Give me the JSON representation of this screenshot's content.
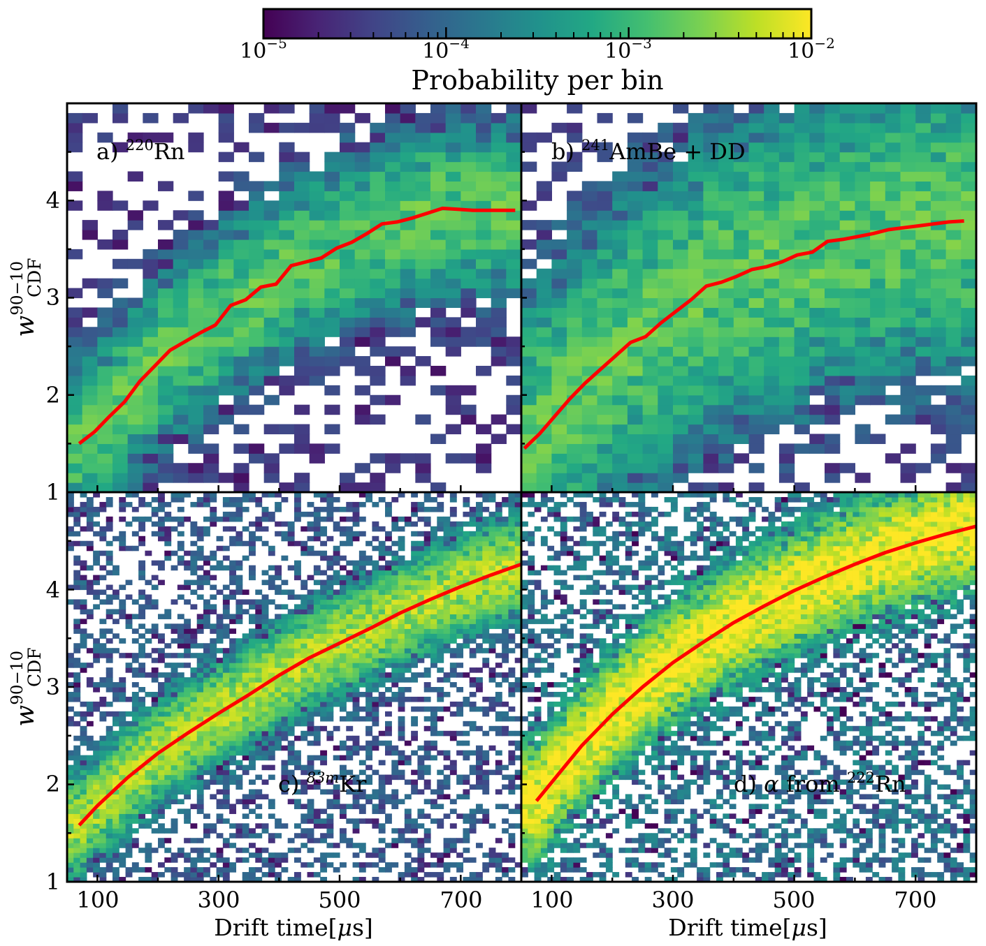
{
  "chart_data": {
    "type": "heatmap",
    "layout": "2x2 panels, shared axes",
    "colorbar": {
      "label": "Probability per bin",
      "scale": "log",
      "range": [
        1e-05,
        0.01
      ],
      "colormap": "viridis",
      "placement": "top",
      "ticks": [
        {
          "base": "10",
          "exp": "−5"
        },
        {
          "base": "10",
          "exp": "−4"
        },
        {
          "base": "10",
          "exp": "−3"
        },
        {
          "base": "10",
          "exp": "−2"
        }
      ]
    },
    "x_axis": {
      "label": "Drift time[",
      "label_symbol": "μ",
      "label_end": "s]",
      "range": [
        50,
        800
      ],
      "ticks": [
        100,
        300,
        500,
        700
      ],
      "tick_labels": [
        "100",
        "300",
        "500",
        "700"
      ]
    },
    "y_axis": {
      "label_base": "w",
      "label_sup": "90−10",
      "label_sub": "CDF",
      "range": [
        1,
        5
      ],
      "ticks": [
        1,
        2,
        3,
        4
      ],
      "tick_labels": [
        "1",
        "2",
        "3",
        "4"
      ]
    },
    "line_color": "#ff0000",
    "panels": [
      {
        "id": "a",
        "label_prefix": "a) ",
        "label_sup": "220",
        "label_suffix": "Rn",
        "bins": [
          30,
          40
        ],
        "spread": 0.42,
        "peak_log": -2.75,
        "threshold": 0.012,
        "median_x": [
          70,
          95,
          120,
          145,
          170,
          195,
          220,
          245,
          270,
          295,
          320,
          345,
          370,
          395,
          420,
          445,
          470,
          495,
          520,
          545,
          570,
          595,
          620,
          645,
          670,
          695,
          720,
          745,
          770,
          790
        ],
        "median_y": [
          1.5,
          1.62,
          1.78,
          1.93,
          2.14,
          2.3,
          2.46,
          2.55,
          2.64,
          2.72,
          2.92,
          2.98,
          3.11,
          3.14,
          3.33,
          3.37,
          3.41,
          3.51,
          3.57,
          3.66,
          3.76,
          3.78,
          3.82,
          3.87,
          3.92,
          3.91,
          3.9,
          3.9,
          3.9,
          3.9
        ]
      },
      {
        "id": "b",
        "label_prefix": "b) ",
        "label_sup": "241",
        "label_suffix": "AmBe + DD",
        "bins": [
          30,
          40
        ],
        "spread": 0.75,
        "peak_log": -2.75,
        "threshold": 0.018,
        "median_x": [
          55,
          80,
          105,
          130,
          155,
          180,
          205,
          230,
          255,
          280,
          305,
          330,
          355,
          380,
          405,
          430,
          455,
          480,
          505,
          530,
          555,
          580,
          605,
          630,
          655,
          680,
          705,
          730,
          755,
          780
        ],
        "median_y": [
          1.45,
          1.6,
          1.78,
          1.96,
          2.12,
          2.26,
          2.4,
          2.54,
          2.6,
          2.74,
          2.86,
          2.98,
          3.12,
          3.16,
          3.22,
          3.29,
          3.32,
          3.37,
          3.44,
          3.47,
          3.58,
          3.6,
          3.63,
          3.66,
          3.7,
          3.72,
          3.74,
          3.76,
          3.78,
          3.79
        ]
      },
      {
        "id": "c",
        "label_prefix": "c) ",
        "label_sup": "83m",
        "label_suffix": "Kr",
        "bins": [
          70,
          80
        ],
        "spread": 0.24,
        "peak_log": -2.3,
        "threshold": 0.004,
        "median_x": [
          70,
          100,
          150,
          200,
          250,
          300,
          350,
          400,
          450,
          500,
          550,
          600,
          650,
          700,
          750,
          800
        ],
        "median_y": [
          1.58,
          1.78,
          2.07,
          2.32,
          2.53,
          2.73,
          2.92,
          3.12,
          3.3,
          3.45,
          3.6,
          3.76,
          3.9,
          4.03,
          4.15,
          4.26
        ]
      },
      {
        "id": "d",
        "label_prefix": "d) ",
        "label_symbol": "α",
        "label_mid": " from ",
        "label_sup": "222",
        "label_suffix": "Rn",
        "bins": [
          70,
          80
        ],
        "spread": 0.28,
        "peak_log": -2.0,
        "threshold": 0.0005,
        "median_x": [
          75,
          100,
          150,
          200,
          250,
          300,
          350,
          400,
          450,
          500,
          550,
          600,
          650,
          700,
          750,
          800
        ],
        "median_y": [
          1.83,
          2.02,
          2.4,
          2.72,
          3.0,
          3.25,
          3.46,
          3.66,
          3.83,
          3.99,
          4.13,
          4.26,
          4.38,
          4.48,
          4.57,
          4.65
        ]
      }
    ]
  }
}
